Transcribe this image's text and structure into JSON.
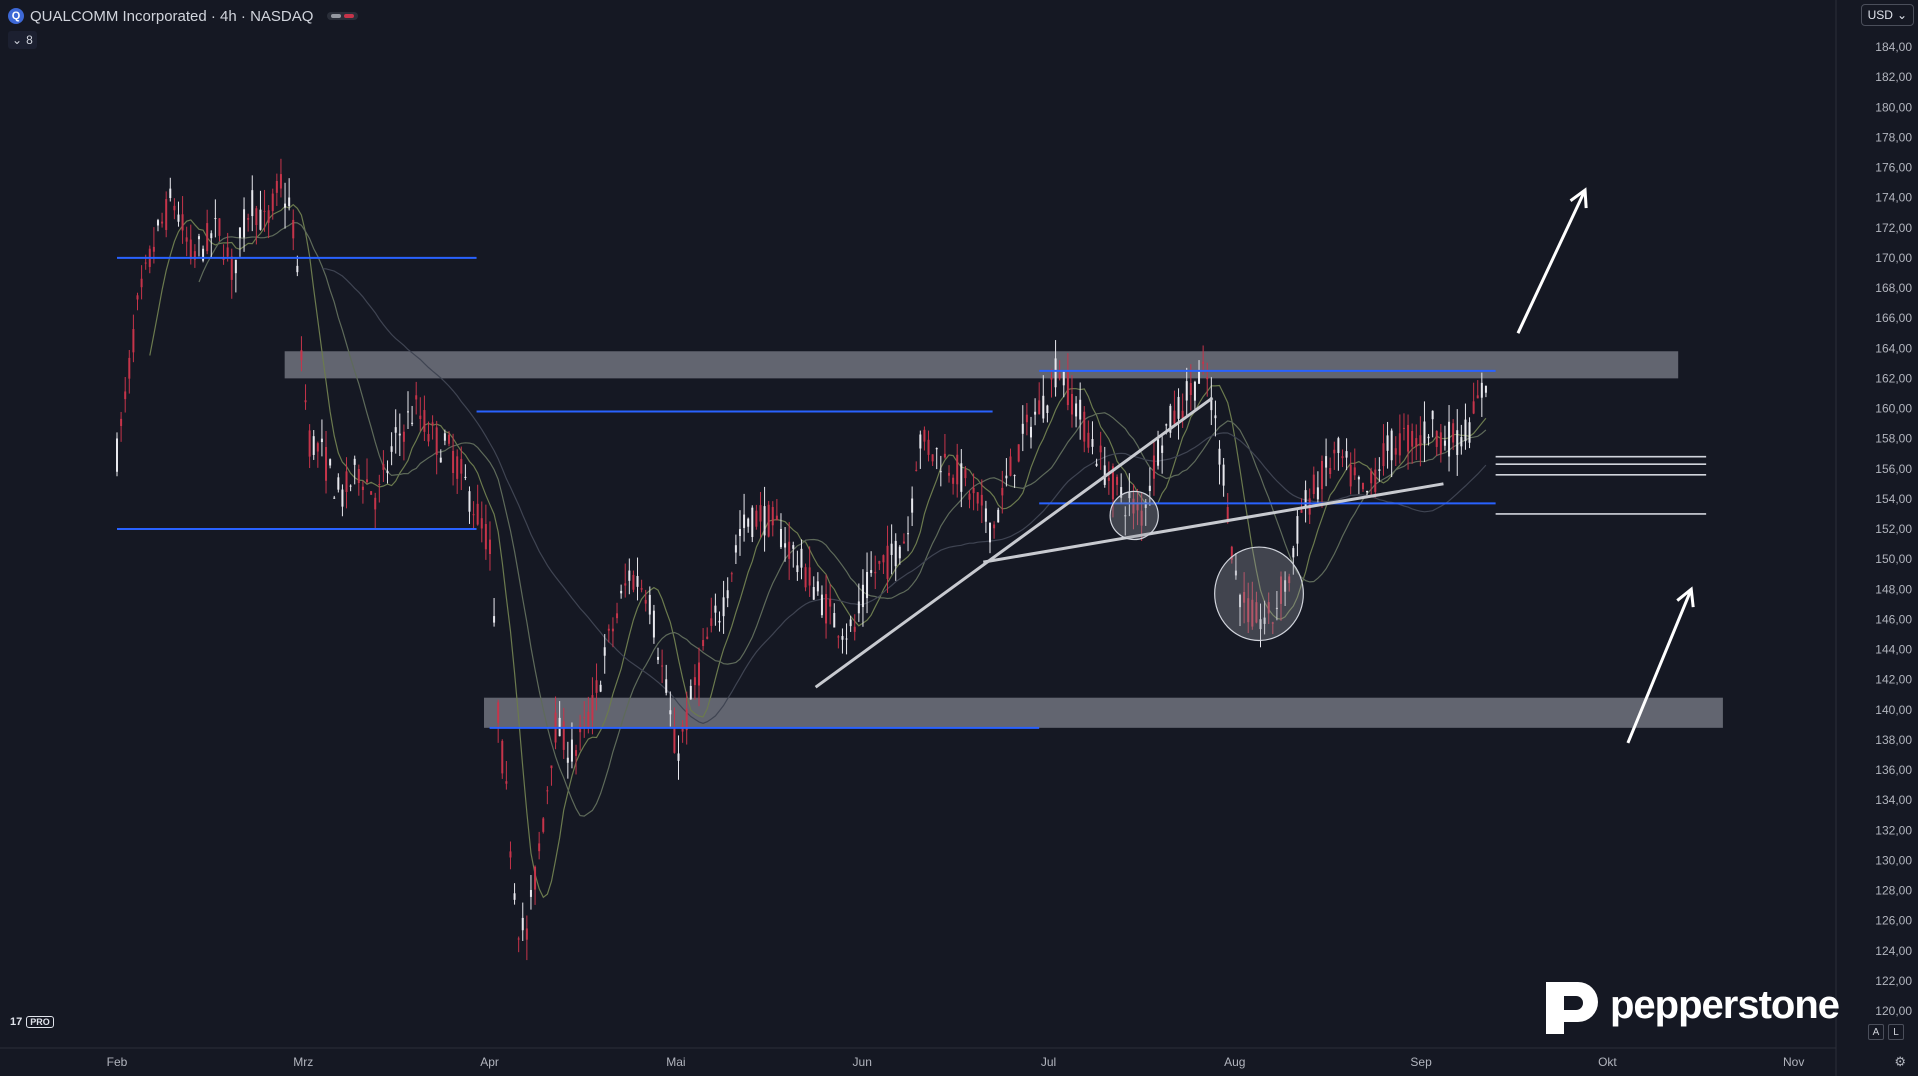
{
  "header": {
    "symbol_initial": "Q",
    "title": "QUALCOMM Incorporated · 4h · NASDAQ",
    "indicators_count": "8"
  },
  "currency": "USD",
  "brand": {
    "name": "pepperstone",
    "tv_badge": "PRO",
    "tv_mark": "17"
  },
  "scale_buttons": [
    "A",
    "L"
  ],
  "colors": {
    "background": "#151823",
    "up": "#e8e8ee",
    "down": "#c6344a",
    "level": "#2962ff",
    "zone": "#9598a1"
  },
  "chart_data": {
    "type": "candlestick",
    "title": "",
    "xlabel": "",
    "ylabel": "",
    "y_axis_labels": [
      "120,00",
      "122,00",
      "124,00",
      "126,00",
      "128,00",
      "130,00",
      "132,00",
      "134,00",
      "136,00",
      "138,00",
      "140,00",
      "142,00",
      "144,00",
      "146,00",
      "148,00",
      "150,00",
      "152,00",
      "154,00",
      "156,00",
      "158,00",
      "160,00",
      "162,00",
      "164,00",
      "166,00",
      "168,00",
      "170,00",
      "172,00",
      "174,00",
      "176,00",
      "178,00",
      "180,00",
      "182,00",
      "184,00"
    ],
    "ylim": [
      119.2,
      185.4
    ],
    "x_axis_labels": [
      "Feb",
      "Mrz",
      "Apr",
      "Mai",
      "Jun",
      "Jul",
      "Aug",
      "Sep",
      "Okt",
      "Nov"
    ],
    "x_months_index": [
      0,
      1,
      2,
      3,
      4,
      5,
      6,
      7,
      8,
      9
    ],
    "price_path": [
      [
        0.0,
        157
      ],
      [
        0.05,
        161
      ],
      [
        0.1,
        166
      ],
      [
        0.2,
        171
      ],
      [
        0.3,
        174
      ],
      [
        0.4,
        170
      ],
      [
        0.55,
        172
      ],
      [
        0.62,
        169
      ],
      [
        0.72,
        174
      ],
      [
        0.8,
        172
      ],
      [
        0.88,
        175
      ],
      [
        0.95,
        172
      ],
      [
        1.0,
        162
      ],
      [
        1.03,
        158
      ],
      [
        1.1,
        157
      ],
      [
        1.2,
        154
      ],
      [
        1.3,
        156
      ],
      [
        1.4,
        154
      ],
      [
        1.5,
        158
      ],
      [
        1.6,
        160
      ],
      [
        1.7,
        158
      ],
      [
        1.8,
        157
      ],
      [
        1.9,
        154
      ],
      [
        2.0,
        151
      ],
      [
        2.05,
        139
      ],
      [
        2.1,
        133
      ],
      [
        2.15,
        126
      ],
      [
        2.2,
        125
      ],
      [
        2.28,
        132
      ],
      [
        2.35,
        139
      ],
      [
        2.45,
        137
      ],
      [
        2.55,
        140
      ],
      [
        2.65,
        145
      ],
      [
        2.75,
        149
      ],
      [
        2.85,
        148
      ],
      [
        2.95,
        141
      ],
      [
        3.0,
        137
      ],
      [
        3.05,
        139
      ],
      [
        3.15,
        144
      ],
      [
        3.25,
        147
      ],
      [
        3.35,
        152
      ],
      [
        3.45,
        153
      ],
      [
        3.55,
        152
      ],
      [
        3.65,
        150
      ],
      [
        3.75,
        148
      ],
      [
        3.85,
        146
      ],
      [
        3.95,
        145
      ],
      [
        4.0,
        147
      ],
      [
        4.05,
        149
      ],
      [
        4.15,
        150
      ],
      [
        4.25,
        152
      ],
      [
        4.3,
        158
      ],
      [
        4.4,
        157
      ],
      [
        4.5,
        156
      ],
      [
        4.6,
        154
      ],
      [
        4.7,
        152
      ],
      [
        4.8,
        156
      ],
      [
        4.9,
        159
      ],
      [
        5.0,
        161
      ],
      [
        5.05,
        163
      ],
      [
        5.15,
        160
      ],
      [
        5.3,
        156
      ],
      [
        5.4,
        154
      ],
      [
        5.5,
        153
      ],
      [
        5.6,
        158
      ],
      [
        5.7,
        160
      ],
      [
        5.8,
        162
      ],
      [
        5.85,
        162
      ],
      [
        5.95,
        155
      ],
      [
        6.0,
        149
      ],
      [
        6.05,
        147
      ],
      [
        6.1,
        146
      ],
      [
        6.2,
        146
      ],
      [
        6.25,
        148
      ],
      [
        6.3,
        149
      ],
      [
        6.35,
        153
      ],
      [
        6.45,
        155
      ],
      [
        6.55,
        157
      ],
      [
        6.65,
        155
      ],
      [
        6.7,
        154
      ],
      [
        6.8,
        157
      ],
      [
        6.9,
        158
      ],
      [
        7.0,
        158
      ],
      [
        7.05,
        159
      ],
      [
        7.12,
        158
      ],
      [
        7.2,
        158
      ],
      [
        7.27,
        159
      ],
      [
        7.35,
        162
      ]
    ],
    "levels": [
      {
        "price": 170.0,
        "from": 0.0,
        "to": 1.93
      },
      {
        "price": 152.0,
        "from": 0.0,
        "to": 1.93
      },
      {
        "price": 159.8,
        "from": 1.93,
        "to": 4.7
      },
      {
        "price": 138.8,
        "from": 2.0,
        "to": 4.95
      },
      {
        "price": 162.5,
        "from": 4.95,
        "to": 7.4
      },
      {
        "price": 153.7,
        "from": 4.95,
        "to": 7.4
      }
    ],
    "zones": [
      {
        "from_price": 162.0,
        "to_price": 163.8,
        "from": 0.9,
        "to": 8.38
      },
      {
        "from_price": 138.8,
        "to_price": 140.8,
        "from": 1.97,
        "to": 8.62
      }
    ],
    "trendlines": [
      {
        "x1": 3.75,
        "y1": 141.5,
        "x2": 5.88,
        "y2": 160.7
      },
      {
        "x1": 4.65,
        "y1": 149.8,
        "x2": 7.12,
        "y2": 155.0
      }
    ],
    "white_levels": [
      {
        "price": 156.8,
        "from": 7.4,
        "to": 8.53
      },
      {
        "price": 156.3,
        "from": 7.4,
        "to": 8.53
      },
      {
        "price": 155.6,
        "from": 7.4,
        "to": 8.53
      },
      {
        "price": 153.0,
        "from": 7.4,
        "to": 8.53
      }
    ],
    "arrows": [
      {
        "x1": 7.52,
        "y1": 165.0,
        "x2": 7.88,
        "y2": 174.5
      },
      {
        "x1": 8.11,
        "y1": 137.8,
        "x2": 8.45,
        "y2": 148.0
      }
    ],
    "circles": [
      {
        "cx": 5.46,
        "cy": 152.9,
        "r_price": 1.6
      },
      {
        "cx": 6.13,
        "cy": 147.7,
        "r_price": 3.1
      }
    ]
  }
}
